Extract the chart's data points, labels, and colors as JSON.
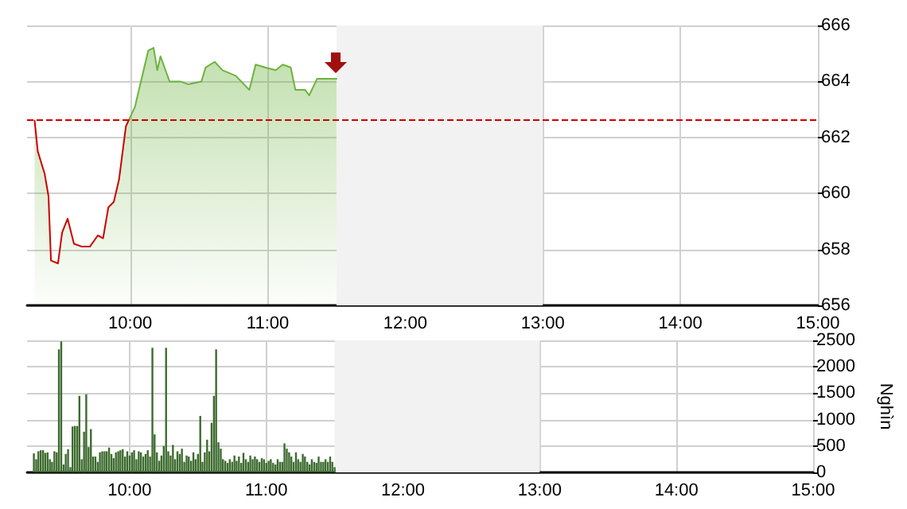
{
  "chart_data": [
    {
      "type": "area",
      "xlim": [
        9.25,
        15
      ],
      "xticks": [
        {
          "value": 10,
          "label": "10:00"
        },
        {
          "value": 11,
          "label": "11:00"
        },
        {
          "value": 12,
          "label": "12:00"
        },
        {
          "value": 13,
          "label": "13:00"
        },
        {
          "value": 14,
          "label": "14:00"
        },
        {
          "value": 15,
          "label": "15:00"
        }
      ],
      "ylim": [
        656,
        666
      ],
      "yticks": [
        656,
        658,
        660,
        662,
        664,
        666
      ],
      "grid": true,
      "marker": "none",
      "line_style": "solid",
      "series": [
        {
          "color": "#6db33f",
          "x": [
            9.305,
            9.328,
            9.378,
            9.406,
            9.424,
            9.475,
            9.505,
            9.545,
            9.591,
            9.649,
            9.707,
            9.765,
            9.803,
            9.841,
            9.881,
            9.919,
            9.969,
            10.035,
            10.073,
            10.131,
            10.17,
            10.197,
            10.22,
            10.286,
            10.363,
            10.421,
            10.518,
            10.548,
            10.614,
            10.672,
            10.768,
            10.866,
            10.912,
            10.981,
            11.058,
            11.109,
            11.167,
            11.201,
            11.271,
            11.301,
            11.359,
            11.425,
            11.5
          ],
          "values": [
            662.6,
            661.5,
            660.7,
            659.9,
            657.6,
            657.5,
            658.6,
            659.1,
            658.2,
            658.1,
            658.1,
            658.5,
            658.4,
            659.5,
            659.7,
            660.5,
            662.4,
            663.1,
            663.9,
            665.1,
            665.2,
            664.4,
            664.9,
            664.0,
            664.0,
            663.9,
            664.0,
            664.5,
            664.7,
            664.4,
            664.2,
            663.7,
            664.6,
            664.5,
            664.4,
            664.6,
            664.5,
            663.7,
            663.7,
            663.5,
            664.1,
            664.1,
            664.1
          ]
        }
      ],
      "ref_lines": [
        {
          "axis": "y",
          "value": 662.65,
          "color": "#cc0000",
          "line_style": "dashed"
        }
      ],
      "bands": [
        {
          "axis": "x",
          "from": 11.5,
          "to": 13,
          "color": "#f2f2f2"
        }
      ]
    },
    {
      "type": "bar",
      "ylabel": "Nghìn",
      "xlim": [
        9.25,
        15
      ],
      "xticks": [
        {
          "value": 10,
          "label": "10:00"
        },
        {
          "value": 11,
          "label": "11:00"
        },
        {
          "value": 12,
          "label": "12:00"
        },
        {
          "value": 13,
          "label": "13:00"
        },
        {
          "value": 14,
          "label": "14:00"
        },
        {
          "value": 15,
          "label": "15:00"
        }
      ],
      "ylim": [
        0,
        2500
      ],
      "yticks": [
        0,
        500,
        1000,
        1500,
        2000,
        2500
      ],
      "grid": true,
      "series": [
        {
          "color": "#3d6b2f",
          "x": [
            9.3,
            9.317,
            9.333,
            9.35,
            9.367,
            9.383,
            9.4,
            9.417,
            9.433,
            9.45,
            9.467,
            9.483,
            9.5,
            9.517,
            9.533,
            9.55,
            9.567,
            9.583,
            9.6,
            9.617,
            9.633,
            9.65,
            9.667,
            9.683,
            9.7,
            9.717,
            9.733,
            9.75,
            9.767,
            9.783,
            9.8,
            9.817,
            9.833,
            9.85,
            9.867,
            9.883,
            9.9,
            9.917,
            9.933,
            9.95,
            9.967,
            9.983,
            10.0,
            10.017,
            10.033,
            10.05,
            10.067,
            10.083,
            10.1,
            10.117,
            10.133,
            10.15,
            10.167,
            10.183,
            10.2,
            10.217,
            10.233,
            10.25,
            10.267,
            10.283,
            10.3,
            10.317,
            10.333,
            10.35,
            10.367,
            10.383,
            10.4,
            10.417,
            10.433,
            10.45,
            10.467,
            10.483,
            10.5,
            10.517,
            10.533,
            10.55,
            10.567,
            10.583,
            10.6,
            10.617,
            10.633,
            10.65,
            10.667,
            10.683,
            10.7,
            10.717,
            10.733,
            10.75,
            10.767,
            10.783,
            10.8,
            10.817,
            10.833,
            10.85,
            10.867,
            10.883,
            10.9,
            10.917,
            10.933,
            10.95,
            10.967,
            10.983,
            11.0,
            11.017,
            11.033,
            11.05,
            11.067,
            11.083,
            11.1,
            11.117,
            11.133,
            11.15,
            11.167,
            11.183,
            11.2,
            11.217,
            11.233,
            11.25,
            11.267,
            11.283,
            11.3,
            11.317,
            11.333,
            11.35,
            11.367,
            11.383,
            11.4,
            11.417,
            11.433,
            11.45,
            11.467,
            11.483,
            11.5
          ],
          "values": [
            360,
            250,
            400,
            420,
            420,
            370,
            380,
            250,
            200,
            400,
            380,
            2330,
            2480,
            150,
            350,
            440,
            100,
            870,
            880,
            880,
            1450,
            250,
            770,
            1480,
            480,
            820,
            300,
            300,
            200,
            380,
            400,
            400,
            400,
            470,
            350,
            270,
            380,
            400,
            420,
            440,
            300,
            400,
            320,
            380,
            420,
            250,
            400,
            380,
            300,
            350,
            420,
            300,
            2360,
            720,
            380,
            220,
            320,
            500,
            2360,
            400,
            320,
            520,
            250,
            400,
            350,
            450,
            200,
            320,
            300,
            220,
            380,
            250,
            350,
            1070,
            200,
            380,
            620,
            400,
            940,
            1450,
            2330,
            570,
            450,
            250,
            220,
            180,
            250,
            200,
            320,
            220,
            300,
            180,
            370,
            250,
            200,
            320,
            250,
            300,
            250,
            200,
            270,
            250,
            180,
            220,
            250,
            180,
            150,
            250,
            200,
            200,
            550,
            450,
            380,
            300,
            200,
            380,
            250,
            200,
            350,
            300,
            200,
            150,
            250,
            200,
            180,
            300,
            200,
            200,
            250,
            200,
            300,
            200,
            100
          ]
        }
      ],
      "bands": [
        {
          "axis": "x",
          "from": 11.5,
          "to": 13,
          "color": "#f2f2f2"
        }
      ]
    }
  ]
}
